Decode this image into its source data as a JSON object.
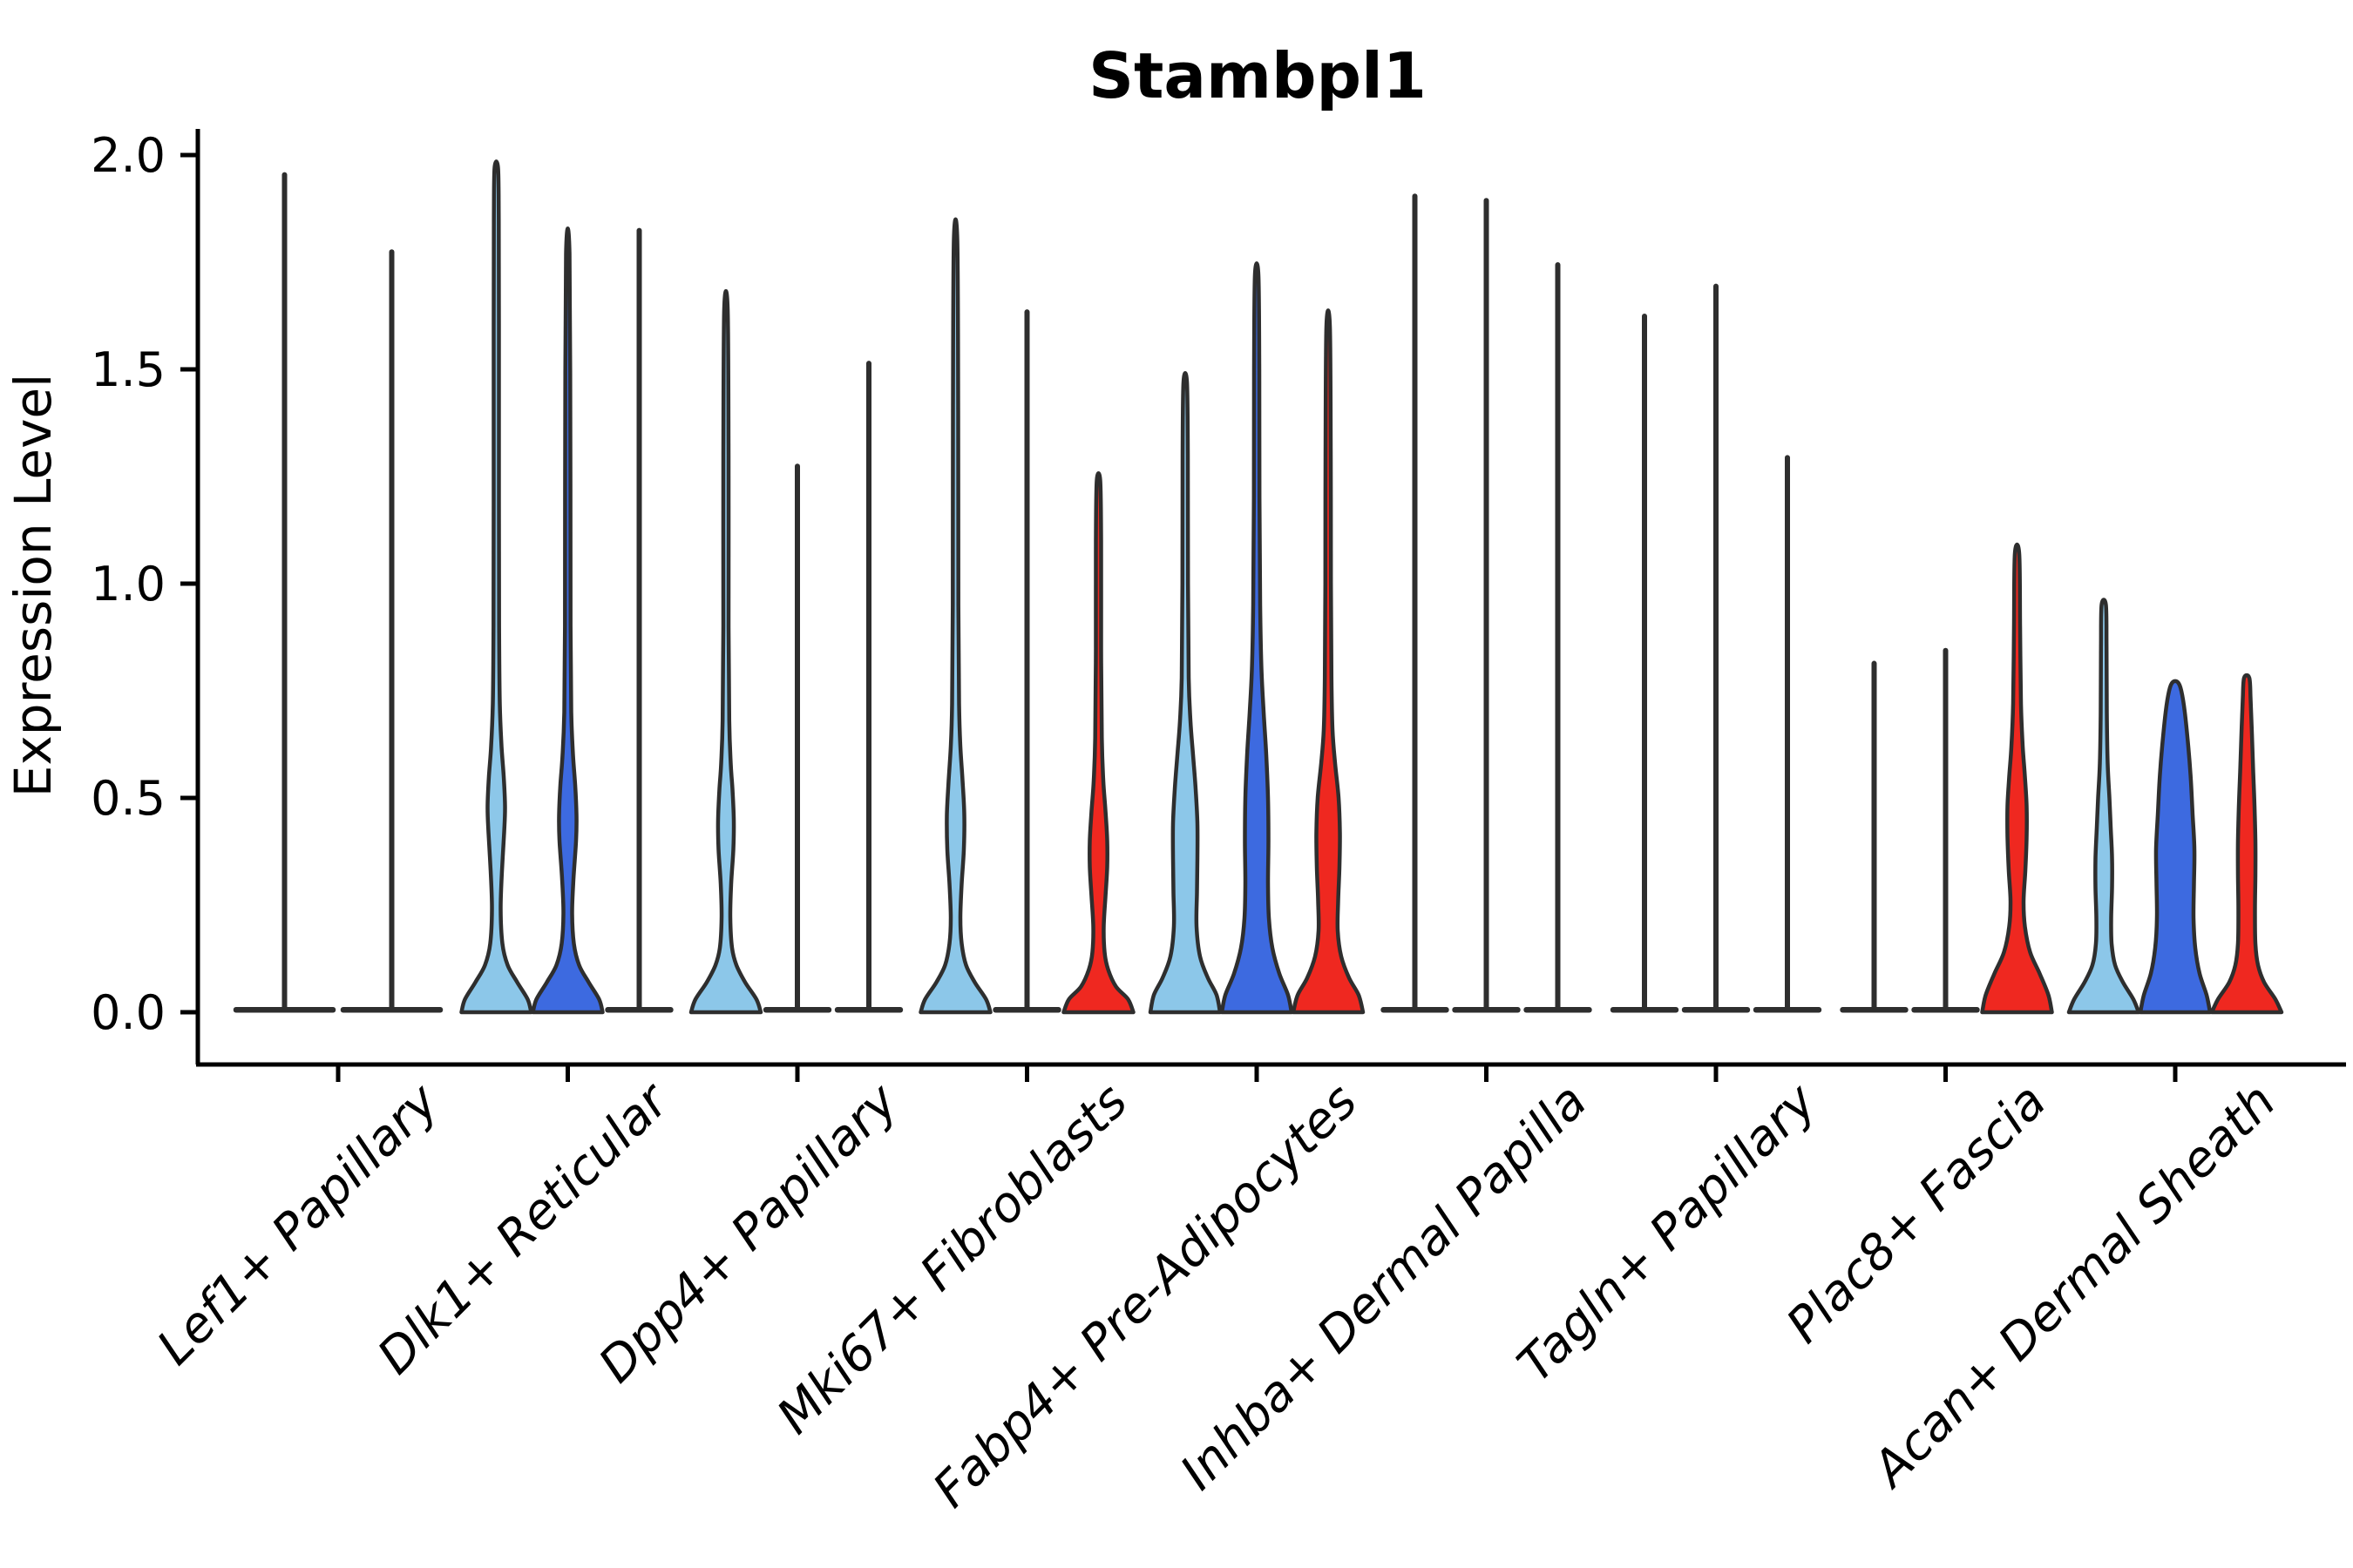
{
  "title": "Stambpl1",
  "ylabel": "Expression Level",
  "colors": {
    "light_blue": "#8CC7E9",
    "dark_blue": "#3D6AE0",
    "red": "#EF2820",
    "outline": "#2E2E2E",
    "axis": "#000000"
  },
  "chart_data": {
    "type": "violin",
    "title": "Stambpl1",
    "xlabel": "",
    "ylabel": "Expression Level",
    "ylim": [
      0,
      2.05
    ],
    "grid": false,
    "legend": "none",
    "yticks": [
      {
        "value": 0.0,
        "label": "0.0"
      },
      {
        "value": 0.5,
        "label": "0.5"
      },
      {
        "value": 1.0,
        "label": "1.0"
      },
      {
        "value": 1.5,
        "label": "1.5"
      },
      {
        "value": 2.0,
        "label": "2.0"
      }
    ],
    "categories": [
      "Lef1+ Papillary",
      "Dlk1+ Reticular",
      "Dpp4+ Papillary",
      "Mki67+ Fibroblasts",
      "Fabp4+ Pre-Adipocytes",
      "Inhba+ Dermal Papilla",
      "Tagln+ Papillary",
      "Plac8+ Fascia",
      "Acan+ Dermal Sheath"
    ],
    "groups": [
      {
        "label": "Lef1+ Papillary",
        "violins": [
          {
            "color": "light_blue",
            "shape": "spike",
            "max": 1.96
          },
          {
            "color": "dark_blue",
            "shape": "spike",
            "max": 1.78
          }
        ]
      },
      {
        "label": "Dlk1+ Reticular",
        "violins": [
          {
            "color": "light_blue",
            "shape": "violin",
            "max": 1.97,
            "profile": [
              [
                0,
                40
              ],
              [
                0.03,
                36
              ],
              [
                0.07,
                24
              ],
              [
                0.11,
                13
              ],
              [
                0.16,
                7
              ],
              [
                0.24,
                5
              ],
              [
                0.33,
                6.5
              ],
              [
                0.42,
                9
              ],
              [
                0.48,
                10
              ],
              [
                0.55,
                8.5
              ],
              [
                0.62,
                6
              ],
              [
                0.72,
                4
              ],
              [
                0.9,
                3.2
              ],
              [
                1.2,
                3
              ],
              [
                1.6,
                3
              ],
              [
                1.85,
                2.8
              ],
              [
                1.97,
                2
              ]
            ]
          },
          {
            "color": "dark_blue",
            "shape": "violin",
            "max": 1.77,
            "profile": [
              [
                0,
                40
              ],
              [
                0.03,
                36
              ],
              [
                0.07,
                24
              ],
              [
                0.11,
                13
              ],
              [
                0.16,
                7
              ],
              [
                0.23,
                5
              ],
              [
                0.31,
                6.5
              ],
              [
                0.4,
                9.5
              ],
              [
                0.46,
                10
              ],
              [
                0.53,
                8.5
              ],
              [
                0.6,
                6
              ],
              [
                0.7,
                4
              ],
              [
                0.9,
                3.2
              ],
              [
                1.3,
                3
              ],
              [
                1.77,
                2
              ]
            ]
          },
          {
            "color": "red",
            "shape": "spike",
            "max": 1.83
          }
        ]
      },
      {
        "label": "Dpp4+ Papillary",
        "violins": [
          {
            "color": "light_blue",
            "shape": "violin",
            "max": 1.64,
            "profile": [
              [
                0,
                40
              ],
              [
                0.03,
                35
              ],
              [
                0.07,
                22
              ],
              [
                0.11,
                12
              ],
              [
                0.15,
                7
              ],
              [
                0.22,
                5
              ],
              [
                0.3,
                6
              ],
              [
                0.38,
                8.5
              ],
              [
                0.45,
                9
              ],
              [
                0.52,
                7.5
              ],
              [
                0.58,
                5.5
              ],
              [
                0.68,
                3.8
              ],
              [
                0.9,
                3
              ],
              [
                1.3,
                3
              ],
              [
                1.64,
                2
              ]
            ]
          },
          {
            "color": "dark_blue",
            "shape": "spike",
            "max": 1.28
          },
          {
            "color": "red",
            "shape": "spike",
            "max": 1.52
          }
        ]
      },
      {
        "label": "Mki67+ Fibroblasts",
        "violins": [
          {
            "color": "light_blue",
            "shape": "violin",
            "max": 1.8,
            "profile": [
              [
                0,
                40
              ],
              [
                0.03,
                35
              ],
              [
                0.07,
                22
              ],
              [
                0.11,
                12
              ],
              [
                0.16,
                7
              ],
              [
                0.22,
                5.5
              ],
              [
                0.3,
                7
              ],
              [
                0.38,
                9.5
              ],
              [
                0.46,
                10
              ],
              [
                0.54,
                8
              ],
              [
                0.62,
                5.5
              ],
              [
                0.72,
                4
              ],
              [
                0.95,
                3.2
              ],
              [
                1.4,
                3
              ],
              [
                1.8,
                2
              ]
            ]
          },
          {
            "color": "dark_blue",
            "shape": "spike",
            "max": 1.64
          },
          {
            "color": "red",
            "shape": "violin",
            "max": 1.24,
            "profile": [
              [
                0,
                40
              ],
              [
                0.03,
                34
              ],
              [
                0.06,
                20
              ],
              [
                0.1,
                11
              ],
              [
                0.14,
                7
              ],
              [
                0.2,
                6
              ],
              [
                0.27,
                8
              ],
              [
                0.34,
                10
              ],
              [
                0.4,
                10
              ],
              [
                0.47,
                8
              ],
              [
                0.54,
                5.5
              ],
              [
                0.64,
                3.8
              ],
              [
                0.85,
                3
              ],
              [
                1.1,
                3
              ],
              [
                1.24,
                2
              ]
            ]
          }
        ]
      },
      {
        "label": "Fabp4+ Pre-Adipocytes",
        "violins": [
          {
            "color": "light_blue",
            "shape": "violin",
            "max": 1.47,
            "profile": [
              [
                0,
                40
              ],
              [
                0.04,
                36
              ],
              [
                0.08,
                26
              ],
              [
                0.13,
                17
              ],
              [
                0.2,
                13
              ],
              [
                0.28,
                13.5
              ],
              [
                0.36,
                14
              ],
              [
                0.44,
                14
              ],
              [
                0.52,
                12
              ],
              [
                0.6,
                9
              ],
              [
                0.68,
                6
              ],
              [
                0.78,
                4
              ],
              [
                1.0,
                3.2
              ],
              [
                1.3,
                3
              ],
              [
                1.47,
                2
              ]
            ]
          },
          {
            "color": "dark_blue",
            "shape": "violin",
            "max": 1.72,
            "profile": [
              [
                0,
                40
              ],
              [
                0.04,
                36
              ],
              [
                0.09,
                26
              ],
              [
                0.15,
                18
              ],
              [
                0.22,
                14
              ],
              [
                0.3,
                13
              ],
              [
                0.4,
                13.5
              ],
              [
                0.5,
                13
              ],
              [
                0.6,
                11
              ],
              [
                0.7,
                8
              ],
              [
                0.8,
                5.5
              ],
              [
                0.95,
                4
              ],
              [
                1.2,
                3.2
              ],
              [
                1.5,
                3
              ],
              [
                1.72,
                2
              ]
            ]
          },
          {
            "color": "red",
            "shape": "violin",
            "max": 1.6,
            "profile": [
              [
                0,
                40
              ],
              [
                0.04,
                35
              ],
              [
                0.08,
                24
              ],
              [
                0.13,
                15
              ],
              [
                0.19,
                11
              ],
              [
                0.26,
                11.5
              ],
              [
                0.34,
                13
              ],
              [
                0.42,
                13.5
              ],
              [
                0.5,
                12
              ],
              [
                0.58,
                8
              ],
              [
                0.66,
                5
              ],
              [
                0.78,
                3.8
              ],
              [
                1.0,
                3.2
              ],
              [
                1.3,
                3
              ],
              [
                1.6,
                2
              ]
            ]
          }
        ]
      },
      {
        "label": "Inhba+ Dermal Papilla",
        "violins": [
          {
            "color": "light_blue",
            "shape": "spike",
            "max": 1.91
          },
          {
            "color": "dark_blue",
            "shape": "spike",
            "max": 1.9
          },
          {
            "color": "red",
            "shape": "spike",
            "max": 1.75
          }
        ]
      },
      {
        "label": "Tagln+ Papillary",
        "violins": [
          {
            "color": "light_blue",
            "shape": "spike",
            "max": 1.63
          },
          {
            "color": "dark_blue",
            "shape": "spike",
            "max": 1.7
          },
          {
            "color": "red",
            "shape": "spike",
            "max": 1.3
          }
        ]
      },
      {
        "label": "Plac8+ Fascia",
        "violins": [
          {
            "color": "light_blue",
            "shape": "spike",
            "max": 0.82
          },
          {
            "color": "dark_blue",
            "shape": "spike",
            "max": 0.85
          },
          {
            "color": "red",
            "shape": "violin",
            "max": 1.07,
            "profile": [
              [
                0,
                40
              ],
              [
                0.04,
                36
              ],
              [
                0.09,
                26
              ],
              [
                0.14,
                15
              ],
              [
                0.2,
                9
              ],
              [
                0.26,
                7.5
              ],
              [
                0.33,
                9.5
              ],
              [
                0.41,
                11
              ],
              [
                0.48,
                11
              ],
              [
                0.55,
                9
              ],
              [
                0.62,
                6.5
              ],
              [
                0.72,
                4.5
              ],
              [
                0.9,
                3.5
              ],
              [
                1.07,
                2.5
              ]
            ]
          }
        ]
      },
      {
        "label": "Acan+ Dermal Sheath",
        "violins": [
          {
            "color": "light_blue",
            "shape": "violin",
            "max": 0.95,
            "profile": [
              [
                0,
                40
              ],
              [
                0.03,
                34
              ],
              [
                0.07,
                22
              ],
              [
                0.11,
                13
              ],
              [
                0.16,
                9
              ],
              [
                0.22,
                8.5
              ],
              [
                0.29,
                9.5
              ],
              [
                0.36,
                9.5
              ],
              [
                0.43,
                8
              ],
              [
                0.5,
                6.5
              ],
              [
                0.58,
                4.5
              ],
              [
                0.7,
                3.5
              ],
              [
                0.85,
                3.2
              ],
              [
                0.95,
                2.5
              ]
            ]
          },
          {
            "color": "dark_blue",
            "shape": "violin",
            "max": 0.77,
            "profile": [
              [
                0,
                40
              ],
              [
                0.04,
                36
              ],
              [
                0.09,
                28
              ],
              [
                0.15,
                23
              ],
              [
                0.22,
                21
              ],
              [
                0.3,
                21.5
              ],
              [
                0.38,
                22
              ],
              [
                0.46,
                20
              ],
              [
                0.54,
                18
              ],
              [
                0.62,
                15
              ],
              [
                0.7,
                11
              ],
              [
                0.75,
                7
              ],
              [
                0.77,
                3
              ]
            ]
          },
          {
            "color": "red",
            "shape": "violin",
            "max": 0.78,
            "profile": [
              [
                0,
                40
              ],
              [
                0.03,
                33
              ],
              [
                0.07,
                20
              ],
              [
                0.11,
                13
              ],
              [
                0.16,
                10
              ],
              [
                0.24,
                9.5
              ],
              [
                0.32,
                10
              ],
              [
                0.4,
                10
              ],
              [
                0.48,
                9
              ],
              [
                0.56,
                7.5
              ],
              [
                0.65,
                6
              ],
              [
                0.73,
                4.5
              ],
              [
                0.78,
                3
              ]
            ]
          }
        ]
      }
    ]
  }
}
